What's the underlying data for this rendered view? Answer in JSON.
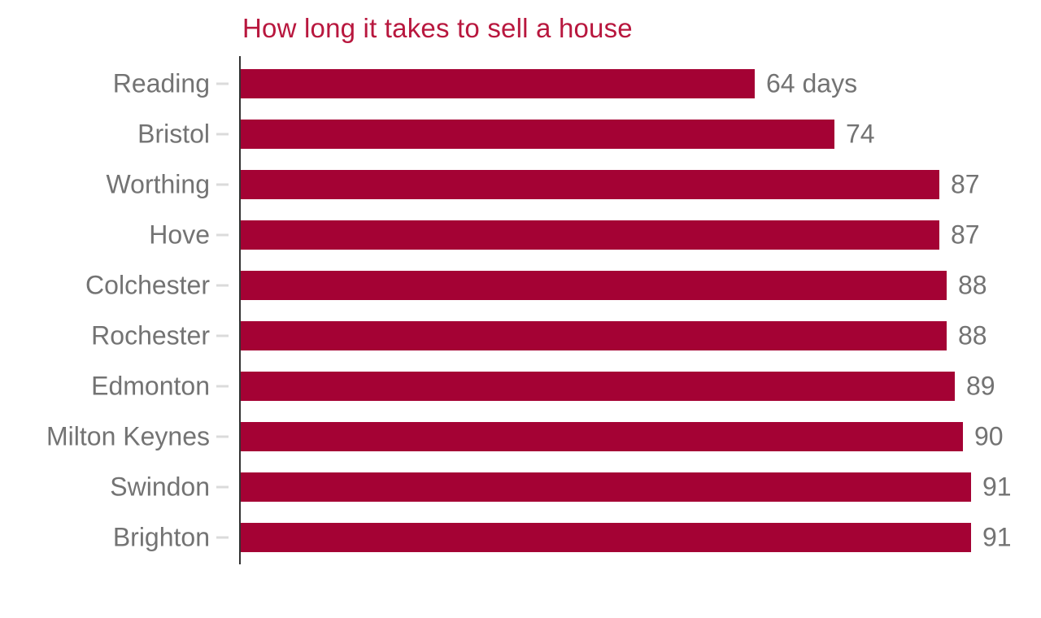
{
  "colors": {
    "bar": "#a40234",
    "title": "#b8173e",
    "label": "#737373",
    "axis": "#333333",
    "tick": "#dbdbdb"
  },
  "chart_data": {
    "type": "bar",
    "orientation": "horizontal",
    "title": "How long it takes to sell a house",
    "xlabel": "",
    "ylabel": "",
    "unit": "days",
    "xlim": [
      0,
      91
    ],
    "grid": false,
    "legend": false,
    "categories": [
      "Reading",
      "Bristol",
      "Worthing",
      "Hove",
      "Colchester",
      "Rochester",
      "Edmonton",
      "Milton Keynes",
      "Swindon",
      "Brighton"
    ],
    "values": [
      64,
      74,
      87,
      87,
      88,
      88,
      89,
      90,
      91,
      91
    ],
    "value_labels": [
      "64 days",
      "74",
      "87",
      "87",
      "88",
      "88",
      "89",
      "90",
      "91",
      "91"
    ]
  }
}
